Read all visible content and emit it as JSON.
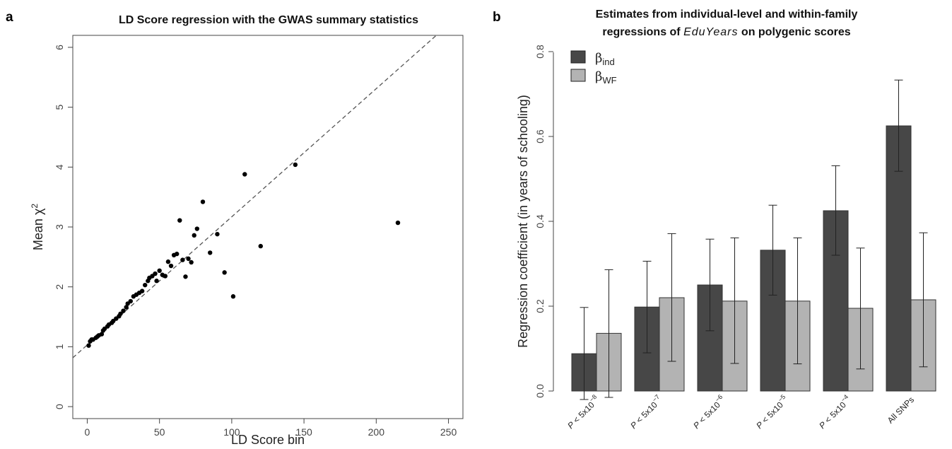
{
  "panels": {
    "a": {
      "letter": "a"
    },
    "b": {
      "letter": "b"
    }
  },
  "chart_data": [
    {
      "type": "scatter",
      "title": "LD Score regression with the GWAS summary statistics",
      "xlabel": "LD Score bin",
      "ylabel_main": "Mean χ",
      "ylabel_sup": "2",
      "xlim": [
        -10,
        260
      ],
      "ylim": [
        -0.2,
        6.2
      ],
      "xticks": [
        0,
        50,
        100,
        150,
        200,
        250
      ],
      "yticks": [
        0,
        1,
        2,
        3,
        4,
        5,
        6
      ],
      "regression_line": {
        "intercept": 1.03,
        "slope": 0.0214,
        "style": "dashed"
      },
      "points": [
        {
          "x": 1,
          "y": 1.02
        },
        {
          "x": 2,
          "y": 1.09
        },
        {
          "x": 3,
          "y": 1.12
        },
        {
          "x": 4,
          "y": 1.12
        },
        {
          "x": 6,
          "y": 1.15
        },
        {
          "x": 7,
          "y": 1.17
        },
        {
          "x": 8,
          "y": 1.19
        },
        {
          "x": 10,
          "y": 1.21
        },
        {
          "x": 11,
          "y": 1.27
        },
        {
          "x": 12,
          "y": 1.3
        },
        {
          "x": 14,
          "y": 1.34
        },
        {
          "x": 15,
          "y": 1.37
        },
        {
          "x": 17,
          "y": 1.4
        },
        {
          "x": 18,
          "y": 1.43
        },
        {
          "x": 20,
          "y": 1.47
        },
        {
          "x": 22,
          "y": 1.51
        },
        {
          "x": 23,
          "y": 1.55
        },
        {
          "x": 25,
          "y": 1.6
        },
        {
          "x": 27,
          "y": 1.66
        },
        {
          "x": 28,
          "y": 1.72
        },
        {
          "x": 30,
          "y": 1.76
        },
        {
          "x": 32,
          "y": 1.84
        },
        {
          "x": 34,
          "y": 1.87
        },
        {
          "x": 36,
          "y": 1.9
        },
        {
          "x": 38,
          "y": 1.93
        },
        {
          "x": 40,
          "y": 2.03
        },
        {
          "x": 42,
          "y": 2.1
        },
        {
          "x": 43,
          "y": 2.15
        },
        {
          "x": 45,
          "y": 2.18
        },
        {
          "x": 47,
          "y": 2.22
        },
        {
          "x": 48,
          "y": 2.1
        },
        {
          "x": 50,
          "y": 2.27
        },
        {
          "x": 52,
          "y": 2.2
        },
        {
          "x": 54,
          "y": 2.18
        },
        {
          "x": 56,
          "y": 2.42
        },
        {
          "x": 58,
          "y": 2.35
        },
        {
          "x": 60,
          "y": 2.53
        },
        {
          "x": 62,
          "y": 2.55
        },
        {
          "x": 64,
          "y": 3.11
        },
        {
          "x": 66,
          "y": 2.45
        },
        {
          "x": 68,
          "y": 2.17
        },
        {
          "x": 70,
          "y": 2.47
        },
        {
          "x": 72,
          "y": 2.41
        },
        {
          "x": 74,
          "y": 2.86
        },
        {
          "x": 76,
          "y": 2.97
        },
        {
          "x": 80,
          "y": 3.42
        },
        {
          "x": 85,
          "y": 2.57
        },
        {
          "x": 90,
          "y": 2.88
        },
        {
          "x": 95,
          "y": 2.24
        },
        {
          "x": 101,
          "y": 1.84
        },
        {
          "x": 109,
          "y": 3.88
        },
        {
          "x": 120,
          "y": 2.68
        },
        {
          "x": 144,
          "y": 4.04
        },
        {
          "x": 215,
          "y": 3.07
        }
      ]
    },
    {
      "type": "bar",
      "title_line1": "Estimates from individual-level and within-family",
      "title_line2_pre": "regressions of ",
      "title_line2_italic": "EduYears",
      "title_line2_post": " on polygenic scores",
      "ylabel": "Regression coefficient (in years of schooling)",
      "ylim": [
        0,
        0.8
      ],
      "yticks": [
        "0.0",
        "0.2",
        "0.4",
        "0.6",
        "0.8"
      ],
      "categories": [
        {
          "base": "P < 5x10",
          "exp": "−8"
        },
        {
          "base": "P < 5x10",
          "exp": "−7"
        },
        {
          "base": "P < 5x10",
          "exp": "−6"
        },
        {
          "base": "P < 5x10",
          "exp": "−5"
        },
        {
          "base": "P < 5x10",
          "exp": "−4"
        },
        {
          "base": "All SNPs",
          "exp": ""
        }
      ],
      "series": [
        {
          "name_main": "β",
          "name_sub": "ind",
          "color": "#474747",
          "values": [
            0.088,
            0.198,
            0.25,
            0.332,
            0.425,
            0.625
          ],
          "ci_low": [
            -0.02,
            0.09,
            0.142,
            0.226,
            0.32,
            0.518
          ],
          "ci_high": [
            0.197,
            0.306,
            0.358,
            0.438,
            0.531,
            0.733
          ]
        },
        {
          "name_main": "β",
          "name_sub": "WF",
          "color": "#b3b3b3",
          "values": [
            0.136,
            0.22,
            0.212,
            0.212,
            0.195,
            0.215
          ],
          "ci_low": [
            -0.015,
            0.07,
            0.065,
            0.064,
            0.052,
            0.057
          ],
          "ci_high": [
            0.286,
            0.371,
            0.361,
            0.361,
            0.337,
            0.373
          ]
        }
      ],
      "legend_position": "top-left"
    }
  ]
}
